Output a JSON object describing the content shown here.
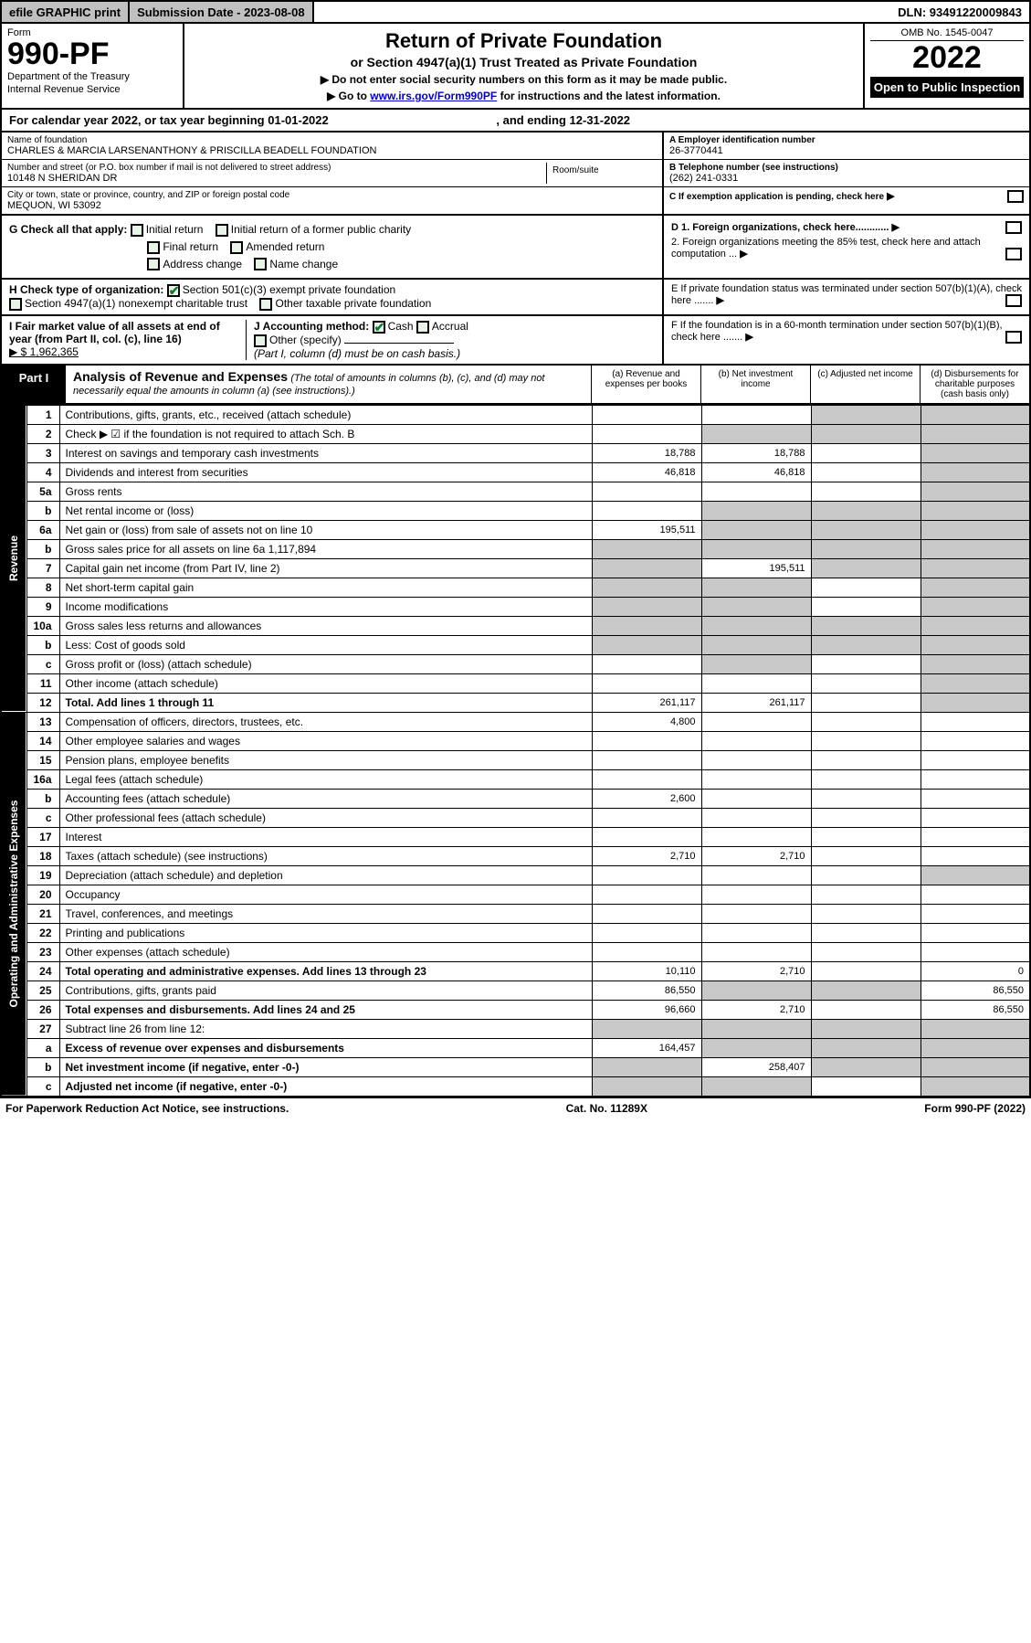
{
  "topbar": {
    "efile": "efile GRAPHIC print",
    "submission": "Submission Date - 2023-08-08",
    "dln": "DLN: 93491220009843"
  },
  "header": {
    "form_label": "Form",
    "form_num": "990-PF",
    "dept": "Department of the Treasury",
    "irs": "Internal Revenue Service",
    "title": "Return of Private Foundation",
    "subtitle": "or Section 4947(a)(1) Trust Treated as Private Foundation",
    "instr1": "▶ Do not enter social security numbers on this form as it may be made public.",
    "instr2_pre": "▶ Go to ",
    "instr2_link": "www.irs.gov/Form990PF",
    "instr2_post": " for instructions and the latest information.",
    "omb": "OMB No. 1545-0047",
    "year": "2022",
    "open": "Open to Public Inspection"
  },
  "calendar": {
    "text_pre": "For calendar year 2022, or tax year beginning ",
    "begin": "01-01-2022",
    "mid": " , and ending ",
    "end": "12-31-2022"
  },
  "entity": {
    "name_lbl": "Name of foundation",
    "name": "CHARLES & MARCIA LARSENANTHONY & PRISCILLA BEADELL FOUNDATION",
    "addr_lbl": "Number and street (or P.O. box number if mail is not delivered to street address)",
    "addr": "10148 N SHERIDAN DR",
    "room_lbl": "Room/suite",
    "city_lbl": "City or town, state or province, country, and ZIP or foreign postal code",
    "city": "MEQUON, WI  53092",
    "ein_lbl": "A Employer identification number",
    "ein": "26-3770441",
    "phone_lbl": "B Telephone number (see instructions)",
    "phone": "(262) 241-0331",
    "c_lbl": "C If exemption application is pending, check here"
  },
  "checks": {
    "g_lbl": "G Check all that apply:",
    "initial": "Initial return",
    "initial_former": "Initial return of a former public charity",
    "final": "Final return",
    "amended": "Amended return",
    "addr_change": "Address change",
    "name_change": "Name change",
    "d1": "D 1. Foreign organizations, check here............",
    "d2": "2. Foreign organizations meeting the 85% test, check here and attach computation ...",
    "e": "E  If private foundation status was terminated under section 507(b)(1)(A), check here .......",
    "h_lbl": "H Check type of organization:",
    "h_501c3": "Section 501(c)(3) exempt private foundation",
    "h_4947": "Section 4947(a)(1) nonexempt charitable trust",
    "h_other": "Other taxable private foundation",
    "i_lbl": "I Fair market value of all assets at end of year (from Part II, col. (c), line 16)",
    "i_val": "▶ $  1,962,365",
    "j_lbl": "J Accounting method:",
    "j_cash": "Cash",
    "j_accrual": "Accrual",
    "j_other": "Other (specify)",
    "j_note": "(Part I, column (d) must be on cash basis.)",
    "f": "F  If the foundation is in a 60-month termination under section 507(b)(1)(B), check here ......."
  },
  "part1": {
    "label": "Part I",
    "title": "Analysis of Revenue and Expenses",
    "note": "(The total of amounts in columns (b), (c), and (d) may not necessarily equal the amounts in column (a) (see instructions).)",
    "col_a": "(a) Revenue and expenses per books",
    "col_b": "(b) Net investment income",
    "col_c": "(c) Adjusted net income",
    "col_d": "(d) Disbursements for charitable purposes (cash basis only)"
  },
  "side": {
    "revenue": "Revenue",
    "expenses": "Operating and Administrative Expenses"
  },
  "rows": [
    {
      "n": "1",
      "d": "Contributions, gifts, grants, etc., received (attach schedule)",
      "a": "",
      "b": "",
      "c_grey": true,
      "d_grey": true
    },
    {
      "n": "2",
      "d": "Check ▶ ☑ if the foundation is not required to attach Sch. B",
      "a": "",
      "b": "",
      "c": "",
      "dd": "",
      "all_grey": true,
      "b_grey": true,
      "c_grey": true,
      "d_grey": true
    },
    {
      "n": "3",
      "d": "Interest on savings and temporary cash investments",
      "a": "18,788",
      "b": "18,788",
      "c": "",
      "dd": "",
      "d_grey": true
    },
    {
      "n": "4",
      "d": "Dividends and interest from securities",
      "a": "46,818",
      "b": "46,818",
      "c": "",
      "dd": "",
      "d_grey": true
    },
    {
      "n": "5a",
      "d": "Gross rents",
      "a": "",
      "b": "",
      "c": "",
      "dd": "",
      "d_grey": true
    },
    {
      "n": "b",
      "d": "Net rental income or (loss)",
      "a": "",
      "b": "",
      "c": "",
      "dd": "",
      "b_grey": true,
      "c_grey": true,
      "d_grey": true
    },
    {
      "n": "6a",
      "d": "Net gain or (loss) from sale of assets not on line 10",
      "a": "195,511",
      "b": "",
      "c": "",
      "dd": "",
      "b_grey": true,
      "c_grey": true,
      "d_grey": true
    },
    {
      "n": "b",
      "d": "Gross sales price for all assets on line 6a            1,117,894",
      "a": "",
      "b": "",
      "c": "",
      "dd": "",
      "a_grey": true,
      "b_grey": true,
      "c_grey": true,
      "d_grey": true
    },
    {
      "n": "7",
      "d": "Capital gain net income (from Part IV, line 2)",
      "a": "",
      "b": "195,511",
      "c": "",
      "dd": "",
      "a_grey": true,
      "c_grey": true,
      "d_grey": true
    },
    {
      "n": "8",
      "d": "Net short-term capital gain",
      "a": "",
      "b": "",
      "c": "",
      "dd": "",
      "a_grey": true,
      "b_grey": true,
      "d_grey": true
    },
    {
      "n": "9",
      "d": "Income modifications",
      "a": "",
      "b": "",
      "c": "",
      "dd": "",
      "a_grey": true,
      "b_grey": true,
      "d_grey": true
    },
    {
      "n": "10a",
      "d": "Gross sales less returns and allowances",
      "a": "",
      "b": "",
      "c": "",
      "dd": "",
      "a_grey": true,
      "b_grey": true,
      "c_grey": true,
      "d_grey": true
    },
    {
      "n": "b",
      "d": "Less: Cost of goods sold",
      "a": "",
      "b": "",
      "c": "",
      "dd": "",
      "a_grey": true,
      "b_grey": true,
      "c_grey": true,
      "d_grey": true
    },
    {
      "n": "c",
      "d": "Gross profit or (loss) (attach schedule)",
      "a": "",
      "b": "",
      "c": "",
      "dd": "",
      "b_grey": true,
      "d_grey": true
    },
    {
      "n": "11",
      "d": "Other income (attach schedule)",
      "a": "",
      "b": "",
      "c": "",
      "dd": "",
      "d_grey": true
    },
    {
      "n": "12",
      "d": "Total. Add lines 1 through 11",
      "a": "261,117",
      "b": "261,117",
      "c": "",
      "dd": "",
      "bold": true,
      "d_grey": true
    },
    {
      "n": "13",
      "d": "Compensation of officers, directors, trustees, etc.",
      "a": "4,800",
      "b": "",
      "c": "",
      "dd": ""
    },
    {
      "n": "14",
      "d": "Other employee salaries and wages",
      "a": "",
      "b": "",
      "c": "",
      "dd": ""
    },
    {
      "n": "15",
      "d": "Pension plans, employee benefits",
      "a": "",
      "b": "",
      "c": "",
      "dd": ""
    },
    {
      "n": "16a",
      "d": "Legal fees (attach schedule)",
      "a": "",
      "b": "",
      "c": "",
      "dd": ""
    },
    {
      "n": "b",
      "d": "Accounting fees (attach schedule)",
      "a": "2,600",
      "b": "",
      "c": "",
      "dd": ""
    },
    {
      "n": "c",
      "d": "Other professional fees (attach schedule)",
      "a": "",
      "b": "",
      "c": "",
      "dd": ""
    },
    {
      "n": "17",
      "d": "Interest",
      "a": "",
      "b": "",
      "c": "",
      "dd": ""
    },
    {
      "n": "18",
      "d": "Taxes (attach schedule) (see instructions)",
      "a": "2,710",
      "b": "2,710",
      "c": "",
      "dd": ""
    },
    {
      "n": "19",
      "d": "Depreciation (attach schedule) and depletion",
      "a": "",
      "b": "",
      "c": "",
      "dd": "",
      "d_grey": true
    },
    {
      "n": "20",
      "d": "Occupancy",
      "a": "",
      "b": "",
      "c": "",
      "dd": ""
    },
    {
      "n": "21",
      "d": "Travel, conferences, and meetings",
      "a": "",
      "b": "",
      "c": "",
      "dd": ""
    },
    {
      "n": "22",
      "d": "Printing and publications",
      "a": "",
      "b": "",
      "c": "",
      "dd": ""
    },
    {
      "n": "23",
      "d": "Other expenses (attach schedule)",
      "a": "",
      "b": "",
      "c": "",
      "dd": ""
    },
    {
      "n": "24",
      "d": "Total operating and administrative expenses. Add lines 13 through 23",
      "a": "10,110",
      "b": "2,710",
      "c": "",
      "dd": "0",
      "bold": true
    },
    {
      "n": "25",
      "d": "Contributions, gifts, grants paid",
      "a": "86,550",
      "b": "",
      "c": "",
      "dd": "86,550",
      "b_grey": true,
      "c_grey": true
    },
    {
      "n": "26",
      "d": "Total expenses and disbursements. Add lines 24 and 25",
      "a": "96,660",
      "b": "2,710",
      "c": "",
      "dd": "86,550",
      "bold": true
    },
    {
      "n": "27",
      "d": "Subtract line 26 from line 12:",
      "a": "",
      "b": "",
      "c": "",
      "dd": "",
      "a_grey": true,
      "b_grey": true,
      "c_grey": true,
      "d_grey": true
    },
    {
      "n": "a",
      "d": "Excess of revenue over expenses and disbursements",
      "a": "164,457",
      "b": "",
      "c": "",
      "dd": "",
      "bold": true,
      "b_grey": true,
      "c_grey": true,
      "d_grey": true
    },
    {
      "n": "b",
      "d": "Net investment income (if negative, enter -0-)",
      "a": "",
      "b": "258,407",
      "c": "",
      "dd": "",
      "bold": true,
      "a_grey": true,
      "c_grey": true,
      "d_grey": true
    },
    {
      "n": "c",
      "d": "Adjusted net income (if negative, enter -0-)",
      "a": "",
      "b": "",
      "c": "",
      "dd": "",
      "bold": true,
      "a_grey": true,
      "b_grey": true,
      "d_grey": true
    }
  ],
  "footer": {
    "left": "For Paperwork Reduction Act Notice, see instructions.",
    "mid": "Cat. No. 11289X",
    "right": "Form 990-PF (2022)"
  },
  "colors": {
    "grey": "#c8c8c8",
    "black": "#000000",
    "link": "#0000cc",
    "check_green": "#0a7d2c"
  }
}
